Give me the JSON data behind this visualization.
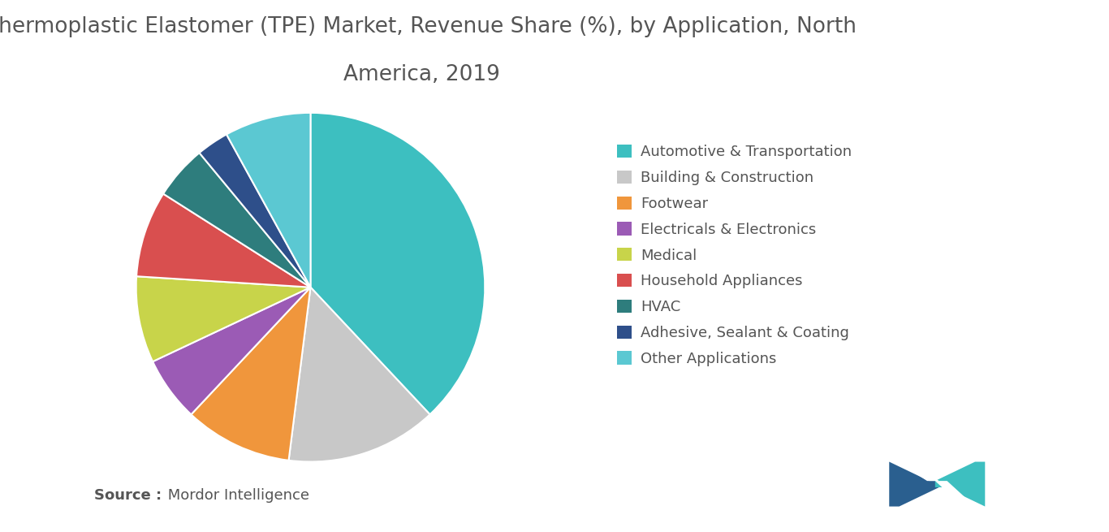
{
  "title_line1": "Thermoplastic Elastomer (TPE) Market, Revenue Share (%), by Application, North",
  "title_line2": "America, 2019",
  "title_fontsize": 19,
  "labels": [
    "Automotive & Transportation",
    "Building & Construction",
    "Footwear",
    "Electricals & Electronics",
    "Medical",
    "Household Appliances",
    "HVAC",
    "Adhesive, Sealant & Coating",
    "Other Applications"
  ],
  "sizes": [
    38,
    14,
    10,
    6,
    8,
    8,
    5,
    3,
    8
  ],
  "colors": [
    "#3dbfc0",
    "#c8c8c8",
    "#f0963c",
    "#9b5bb5",
    "#c8d44a",
    "#d94f4f",
    "#2e7d7d",
    "#2e4f8a",
    "#5bc8d2"
  ],
  "startangle": 90,
  "source_bold": "Source :",
  "source_normal": " Mordor Intelligence",
  "background_color": "#ffffff",
  "legend_fontsize": 13,
  "text_color": "#555555"
}
